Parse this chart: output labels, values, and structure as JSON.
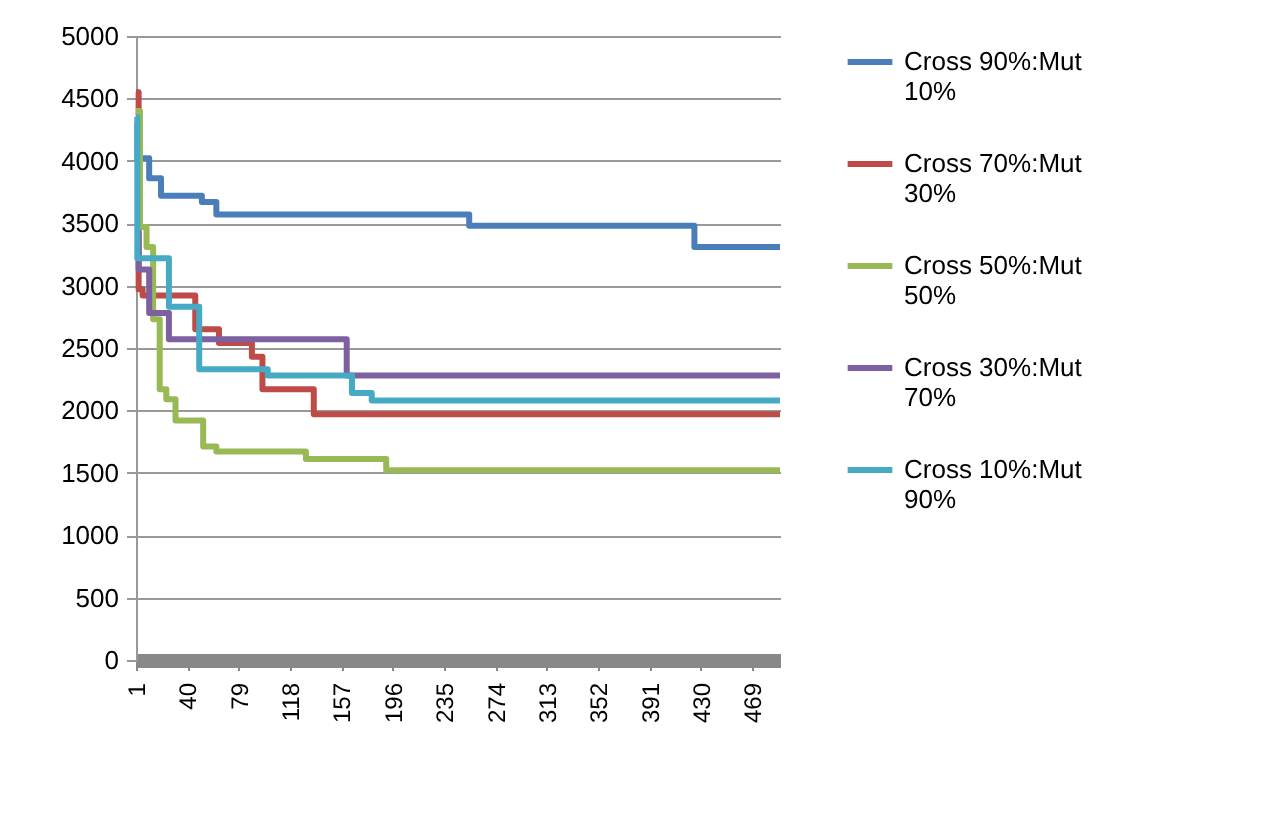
{
  "chart_data": {
    "type": "step",
    "xlim": [
      1,
      490
    ],
    "xticks": [
      1,
      40,
      79,
      118,
      157,
      196,
      235,
      274,
      313,
      352,
      391,
      430,
      469
    ],
    "ylim": [
      0,
      5000
    ],
    "yticks": [
      0,
      500,
      1000,
      1500,
      2000,
      2500,
      3000,
      3500,
      4000,
      4500,
      5000
    ],
    "grid": "y",
    "legend": "right",
    "marker": "none",
    "line_style": "solid",
    "series": [
      {
        "name": "Cross 90%:Mut 10%",
        "color": "#4a7ebb",
        "x": [
          1,
          2,
          11,
          20,
          51,
          62,
          254,
          425,
          490
        ],
        "values": [
          4300,
          4020,
          3860,
          3720,
          3670,
          3570,
          3480,
          3310,
          3310
        ]
      },
      {
        "name": "Cross 70%:Mut 30%",
        "color": "#be4b48",
        "x": [
          1,
          3,
          6,
          46,
          64,
          89,
          97,
          136,
          490
        ],
        "values": [
          4550,
          2970,
          2920,
          2650,
          2540,
          2430,
          2170,
          1970,
          1970
        ]
      },
      {
        "name": "Cross 50%:Mut 50%",
        "color": "#98b954",
        "x": [
          1,
          4,
          9,
          14,
          19,
          24,
          31,
          52,
          62,
          130,
          191,
          490
        ],
        "values": [
          4400,
          3470,
          3310,
          2730,
          2170,
          2090,
          1920,
          1710,
          1670,
          1610,
          1520,
          1520
        ]
      },
      {
        "name": "Cross 30%:Mut 70%",
        "color": "#7d60a0",
        "x": [
          1,
          3,
          11,
          26,
          161,
          490
        ],
        "values": [
          3420,
          3130,
          2780,
          2570,
          2280,
          2280
        ]
      },
      {
        "name": "Cross 10%:Mut 90%",
        "color": "#46aac5",
        "x": [
          1,
          2,
          26,
          49,
          101,
          165,
          180,
          490
        ],
        "values": [
          4350,
          3220,
          2830,
          2330,
          2280,
          2140,
          2080,
          2080
        ]
      }
    ]
  }
}
